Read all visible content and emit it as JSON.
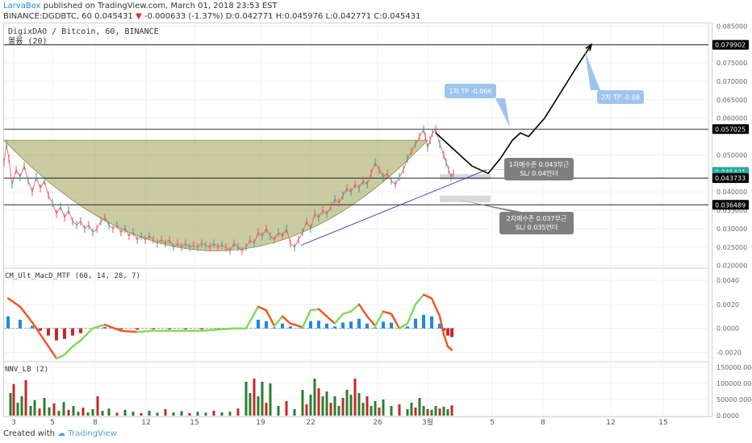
{
  "header": {
    "author": "LarvaBox",
    "published": "published on TradingView.com, March 01, 2018 23:53 EST",
    "symbol_line": "BINANCE:DGDBTC, 60 0.045431",
    "change_arrow": "▼",
    "change": "-0.000633 (-1.37%)",
    "ohlc": "D:0.042771 H:0.045976 L:0.042771 C:0.045431"
  },
  "footer": {
    "created_with": "Created with",
    "brand": "TradingView"
  },
  "chart_data": {
    "type": "line",
    "title": "DigixDAO / Bitcoin, 60, BINANCE",
    "subtitle": "볼륨 (20)",
    "x_tick_labels": [
      "3",
      "5",
      "8",
      "12",
      "15",
      "19",
      "22",
      "26",
      "3월",
      "5",
      "8",
      "12",
      "15"
    ],
    "price_axis": {
      "ylim": [
        0.0195,
        0.0855
      ],
      "ticks": [
        "0.085000",
        "0.075000",
        "0.070000",
        "0.065000",
        "0.060000",
        "0.050000",
        "0.040000",
        "0.035000",
        "0.030000",
        "0.025000",
        "0.020000"
      ],
      "grid": true
    },
    "price_labels": [
      {
        "text": "0.079902",
        "value": 0.079902,
        "color": "#000000"
      },
      {
        "text": "0.057025",
        "value": 0.057025,
        "color": "#000000"
      },
      {
        "text": "0.045431",
        "value": 0.045431,
        "color": "#26a69a"
      },
      {
        "text": "07:03",
        "value": 0.04418,
        "color": "#26a69a"
      },
      {
        "text": "0.043733",
        "value": 0.043733,
        "color": "#000000"
      },
      {
        "text": "0.036489",
        "value": 0.036489,
        "color": "#000000"
      }
    ],
    "horizontal_levels": [
      0.079902,
      0.057025,
      0.043733,
      0.036489
    ],
    "price_series": {
      "name": "DGDBTC",
      "x": [
        0,
        3,
        6,
        10,
        15,
        20,
        25,
        30,
        35,
        40,
        45,
        50,
        55,
        60,
        65,
        70,
        75,
        80,
        85,
        90,
        95,
        100,
        105,
        110,
        115,
        120,
        125,
        130,
        135,
        140,
        145,
        150,
        155,
        160,
        165,
        170,
        175,
        180,
        185,
        190,
        195,
        200,
        205,
        210,
        215,
        220,
        225,
        230,
        235,
        240,
        245,
        250,
        255,
        260,
        265,
        270,
        275,
        280,
        285,
        290,
        295,
        300,
        305,
        310,
        315,
        320,
        325,
        330,
        335,
        340,
        345,
        350,
        355,
        360,
        365,
        370,
        375,
        380,
        385,
        390,
        395,
        400,
        405,
        410,
        415,
        420,
        425,
        430,
        435,
        440,
        445,
        450,
        455,
        460,
        465,
        470,
        475,
        480,
        485,
        490,
        495,
        500,
        505,
        510,
        515,
        520,
        522,
        525,
        528,
        531,
        535,
        540,
        545,
        548,
        551,
        554,
        557
      ],
      "y": [
        0.048,
        0.053,
        0.049,
        0.042,
        0.046,
        0.044,
        0.047,
        0.043,
        0.04,
        0.044,
        0.041,
        0.043,
        0.039,
        0.037,
        0.034,
        0.036,
        0.033,
        0.035,
        0.032,
        0.031,
        0.032,
        0.03,
        0.031,
        0.029,
        0.03,
        0.032,
        0.033,
        0.031,
        0.03,
        0.031,
        0.029,
        0.03,
        0.028,
        0.029,
        0.027,
        0.028,
        0.027,
        0.028,
        0.027,
        0.026,
        0.027,
        0.026,
        0.027,
        0.025,
        0.026,
        0.025,
        0.026,
        0.025,
        0.0255,
        0.025,
        0.026,
        0.0255,
        0.025,
        0.026,
        0.025,
        0.0255,
        0.025,
        0.024,
        0.026,
        0.025,
        0.024,
        0.025,
        0.027,
        0.026,
        0.029,
        0.028,
        0.03,
        0.028,
        0.027,
        0.029,
        0.028,
        0.03,
        0.026,
        0.025,
        0.027,
        0.029,
        0.032,
        0.03,
        0.034,
        0.033,
        0.035,
        0.034,
        0.036,
        0.038,
        0.037,
        0.039,
        0.041,
        0.04,
        0.042,
        0.041,
        0.043,
        0.042,
        0.045,
        0.048,
        0.046,
        0.044,
        0.045,
        0.043,
        0.042,
        0.044,
        0.046,
        0.049,
        0.051,
        0.053,
        0.055,
        0.057,
        0.055,
        0.052,
        0.054,
        0.056,
        0.057,
        0.053,
        0.05,
        0.048,
        0.046,
        0.044,
        0.045
      ]
    },
    "cup_arc": {
      "x": [
        0,
        525
      ],
      "y_rim": 0.054,
      "y_bottom": 0.024,
      "color": "#9fa052"
    },
    "trendline": {
      "x": [
        368,
        598
      ],
      "y": [
        0.0255,
        0.046
      ],
      "color": "#3f51b5"
    },
    "projection": {
      "x": [
        535,
        560,
        580,
        600,
        615,
        630,
        640,
        650,
        670,
        690,
        710,
        728
      ],
      "y": [
        0.056,
        0.051,
        0.047,
        0.045,
        0.049,
        0.054,
        0.056,
        0.055,
        0.06,
        0.067,
        0.074,
        0.08
      ]
    },
    "zones": [
      {
        "x": [
          540,
          603
        ],
        "y": [
          0.0448,
          0.0433
        ],
        "color": "#cfd0d2"
      },
      {
        "x": [
          540,
          603
        ],
        "y": [
          0.039,
          0.0372
        ],
        "color": "#cfd0d2"
      }
    ],
    "callouts": [
      {
        "text": "1차 TP -0.066",
        "style": "blue"
      },
      {
        "text": "2차 TP -0.08",
        "style": "blue"
      },
      {
        "text": "1차매수존 0.043부근",
        "text2": "SL/ 0.04언더",
        "style": "gray"
      },
      {
        "text": "2차매수존 0.037부근",
        "text2": "SL/ 0.035언더",
        "style": "gray"
      }
    ],
    "macd_panel": {
      "title": "CM_Ult_MacD_MTF (60, 14, 28, 7)",
      "ylim": [
        -0.0027,
        0.0048
      ],
      "ticks": [
        "0.0040",
        "0.0020",
        "0.0000",
        "-0.0020"
      ],
      "x": [
        5,
        20,
        35,
        45,
        55,
        65,
        75,
        85,
        95,
        110,
        125,
        145,
        165,
        185,
        205,
        225,
        245,
        265,
        285,
        300,
        315,
        325,
        335,
        345,
        355,
        370,
        380,
        390,
        400,
        410,
        420,
        430,
        440,
        450,
        460,
        470,
        480,
        490,
        500,
        510,
        520,
        530,
        540,
        545,
        550,
        555
      ],
      "y": [
        0.0025,
        0.0018,
        0.0005,
        -0.0005,
        -0.0015,
        -0.0025,
        -0.0022,
        -0.0015,
        -0.001,
        0.0,
        0.0003,
        -0.0002,
        -0.0003,
        -0.0002,
        -0.0002,
        -0.0002,
        -0.0002,
        -0.0001,
        0.0,
        0.0,
        0.0018,
        0.0015,
        0.0002,
        0.001,
        0.0004,
        0.0001,
        0.0015,
        0.0016,
        0.001,
        0.0004,
        0.0012,
        0.0014,
        0.002,
        0.001,
        0.0002,
        0.0014,
        0.0012,
        0.0,
        0.0004,
        0.002,
        0.0028,
        0.0025,
        0.001,
        -0.0005,
        -0.0015,
        -0.0018
      ]
    },
    "volume_panel": {
      "title": "NNV_LB (2)",
      "ylim": [
        0,
        160000
      ],
      "ticks": [
        "150000.0000",
        "100000.0000",
        "50000.0000",
        "0.0000"
      ],
      "x": [
        8,
        12,
        17,
        22,
        27,
        33,
        38,
        44,
        50,
        56,
        62,
        68,
        74,
        80,
        86,
        92,
        98,
        104,
        110,
        116,
        122,
        130,
        140,
        150,
        160,
        170,
        180,
        190,
        200,
        210,
        220,
        230,
        240,
        250,
        260,
        270,
        280,
        290,
        300,
        305,
        310,
        315,
        320,
        325,
        330,
        340,
        350,
        360,
        370,
        375,
        380,
        385,
        390,
        395,
        400,
        405,
        410,
        415,
        420,
        425,
        430,
        435,
        440,
        445,
        450,
        455,
        460,
        465,
        470,
        480,
        490,
        500,
        505,
        510,
        515,
        520,
        525,
        530,
        535,
        540,
        545,
        550,
        555
      ],
      "values": [
        70000,
        98000,
        40000,
        60000,
        110000,
        30000,
        48000,
        22000,
        55000,
        26000,
        38000,
        15000,
        42000,
        18000,
        30000,
        12000,
        25000,
        10000,
        20000,
        60000,
        15000,
        22000,
        9000,
        18000,
        12000,
        8000,
        15000,
        9000,
        20000,
        10000,
        14000,
        8000,
        12000,
        9000,
        15000,
        10000,
        12000,
        22000,
        105000,
        70000,
        115000,
        60000,
        105000,
        40000,
        100000,
        30000,
        45000,
        20000,
        80000,
        35000,
        65000,
        115000,
        85000,
        60000,
        75000,
        40000,
        60000,
        30000,
        55000,
        80000,
        65000,
        115000,
        70000,
        40000,
        60000,
        30000,
        45000,
        25000,
        50000,
        30000,
        35000,
        20000,
        40000,
        25000,
        55000,
        30000,
        20000,
        18000,
        30000,
        22000,
        28000,
        20000,
        32000
      ]
    }
  }
}
